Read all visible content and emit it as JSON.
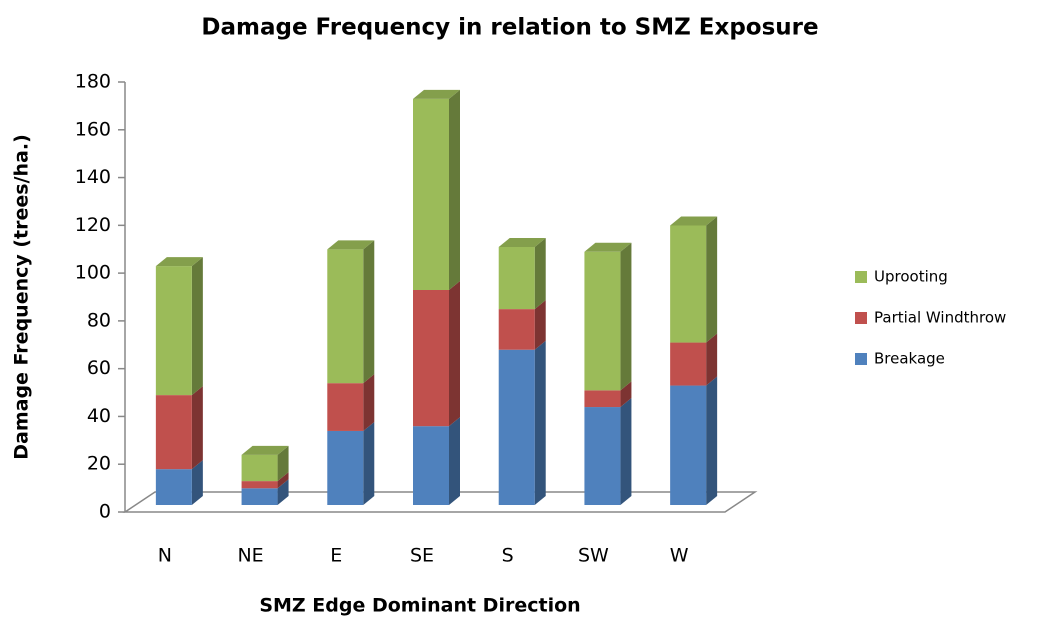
{
  "chart_data": {
    "type": "bar",
    "stacked": true,
    "title": "Damage Frequency in relation to SMZ Exposure",
    "x_label": "SMZ Edge Dominant Direction",
    "y_label": "Damage Frequency (trees/ha.)",
    "categories": [
      "N",
      "NE",
      "E",
      "SE",
      "S",
      "SW",
      "W"
    ],
    "series": [
      {
        "name": "Breakage",
        "color": "#4f81bd",
        "values": [
          15,
          7,
          31,
          33,
          65,
          41,
          50
        ]
      },
      {
        "name": "Partial Windthrow",
        "color": "#c0504d",
        "values": [
          31,
          3,
          20,
          57,
          17,
          7,
          18
        ]
      },
      {
        "name": "Uprooting",
        "color": "#9bbb59",
        "values": [
          54,
          11,
          56,
          80,
          26,
          58,
          49
        ]
      }
    ],
    "ylim": [
      0,
      180
    ],
    "yticks": [
      0,
      20,
      40,
      60,
      80,
      100,
      120,
      140,
      160,
      180
    ],
    "legend": "right"
  }
}
